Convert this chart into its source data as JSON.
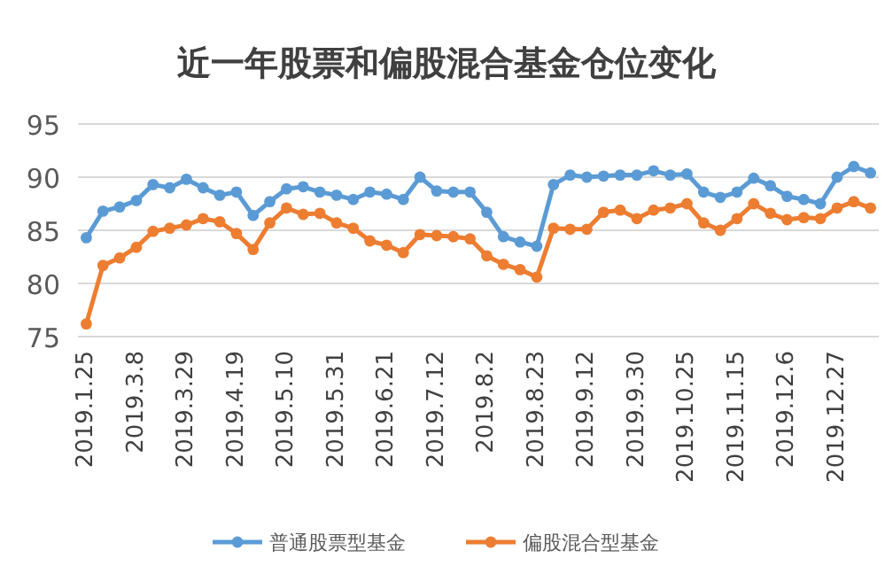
{
  "chart_data": {
    "type": "line",
    "title": "近一年股票和偏股混合基金仓位变化",
    "categories": [
      "2019.1.25",
      null,
      null,
      "2019.3.8",
      null,
      null,
      "2019.3.29",
      null,
      null,
      "2019.4.19",
      null,
      null,
      "2019.5.10",
      null,
      null,
      "2019.5.31",
      null,
      null,
      "2019.6.21",
      null,
      null,
      "2019.7.12",
      null,
      null,
      "2019.8.2",
      null,
      null,
      "2019.8.23",
      null,
      null,
      "2019.9.12",
      null,
      null,
      "2019.9.30",
      null,
      null,
      "2019.10.25",
      null,
      null,
      "2019.11.15",
      null,
      null,
      "2019.12.6",
      null,
      null,
      "2019.12.27",
      null,
      null
    ],
    "series": [
      {
        "name": "普通股票型基金",
        "color": "#5b9bd5",
        "values": [
          84.3,
          86.8,
          87.2,
          87.8,
          89.3,
          89.0,
          89.8,
          89.0,
          88.3,
          88.6,
          86.4,
          87.7,
          88.9,
          89.1,
          88.6,
          88.3,
          87.9,
          88.6,
          88.4,
          87.9,
          90.0,
          88.7,
          88.6,
          88.6,
          86.7,
          84.4,
          83.9,
          83.5,
          89.3,
          90.2,
          90.0,
          90.1,
          90.2,
          90.2,
          90.6,
          90.2,
          90.3,
          88.6,
          88.1,
          88.6,
          89.9,
          89.2,
          88.2,
          87.9,
          87.5,
          90.0,
          91.0,
          90.4
        ]
      },
      {
        "name": "偏股混合型基金",
        "color": "#ed7d31",
        "values": [
          76.2,
          81.7,
          82.4,
          83.4,
          84.9,
          85.2,
          85.5,
          86.1,
          85.8,
          84.7,
          83.2,
          85.7,
          87.1,
          86.5,
          86.6,
          85.7,
          85.2,
          84.0,
          83.6,
          82.9,
          84.6,
          84.5,
          84.4,
          84.2,
          82.6,
          81.8,
          81.3,
          80.6,
          85.2,
          85.1,
          85.1,
          86.7,
          86.9,
          86.1,
          86.9,
          87.1,
          87.5,
          85.7,
          85.0,
          86.1,
          87.5,
          86.6,
          86.0,
          86.2,
          86.1,
          87.1,
          87.7,
          87.1
        ]
      }
    ],
    "ylim": [
      75,
      95
    ],
    "yticks": [
      75,
      80,
      85,
      90,
      95
    ],
    "grid": "y",
    "legend": "bottom",
    "marker": "circle",
    "line_style": "solid"
  }
}
